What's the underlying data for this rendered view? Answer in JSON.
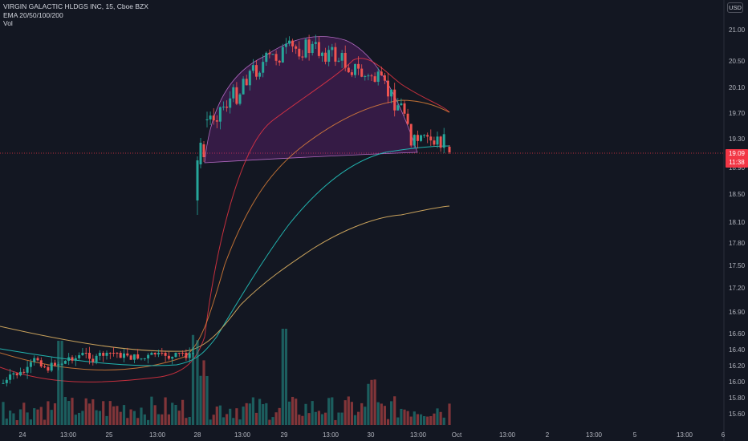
{
  "header": {
    "symbol_line": "VIRGIN GALACTIC HLDGS INC, 15, Cboe BZX",
    "indicator_line": "EMA 20/50/100/200",
    "volume_line": "Vol"
  },
  "currency_button": "USD",
  "current_price": {
    "value": "19.09",
    "countdown": "11:38"
  },
  "y_axis_ticks": [
    "21.00",
    "20.50",
    "20.10",
    "19.70",
    "19.30",
    "18.90",
    "18.50",
    "18.10",
    "17.80",
    "17.50",
    "17.20",
    "16.90",
    "16.60",
    "16.40",
    "16.20",
    "16.00",
    "15.80",
    "15.60"
  ],
  "x_axis_ticks": [
    "24",
    "13:00",
    "25",
    "13:00",
    "28",
    "13:00",
    "29",
    "13:00",
    "30",
    "13:00",
    "Oct",
    "13:00",
    "2",
    "13:00",
    "5",
    "13:00",
    "6"
  ],
  "colors": {
    "background": "#131722",
    "up_candle": "#26a69a",
    "down_candle": "#ef5350",
    "price_line": "#f23645",
    "ema20": "#f23645",
    "ema50": "#e8863a",
    "ema100": "#22b5b0",
    "ema200": "#c9a25c",
    "cup_fill": "#9c27b0"
  },
  "chart_data": {
    "type": "candlestick",
    "title": "VIRGIN GALACTIC HLDGS INC, 15, Cboe BZX",
    "series": [
      {
        "name": "EMA 20/50/100/200"
      },
      {
        "name": "Vol"
      }
    ],
    "ylim": [
      15.5,
      21.2
    ],
    "last_price": 19.09,
    "annotation": "cup pattern shaded between Sep 28 and Sep 30 around the 19.09 level"
  }
}
